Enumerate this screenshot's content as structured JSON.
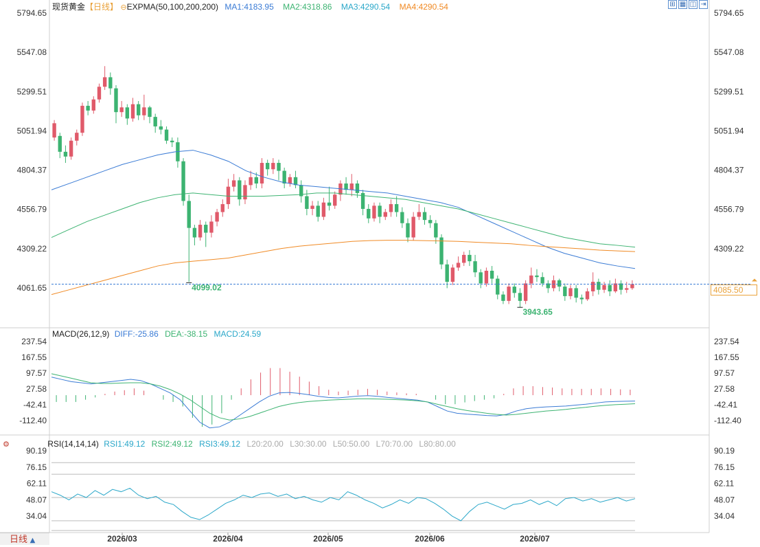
{
  "header": {
    "instrument": "现货黄金",
    "period_tag": "【日线】",
    "indicator": "EXPMA(50,100,200,200)",
    "ma1": "MA1:4183.95",
    "ma2": "MA2:4318.86",
    "ma3": "MA3:4290.54",
    "ma4": "MA4:4290.54"
  },
  "toolbar": {
    "icons": [
      "grid-icon",
      "layout-icon",
      "split-icon",
      "expand-icon"
    ]
  },
  "macd_header": {
    "name": "MACD(26,12,9)",
    "diff": "DIFF:-25.86",
    "dea": "DEA:-38.15",
    "macd": "MACD:24.59"
  },
  "rsi_header": {
    "name": "RSI(14,14,14)",
    "rsi1": "RSI1:49.12",
    "rsi2": "RSI2:49.12",
    "rsi3": "RSI3:49.12",
    "l20": "L20:20.00",
    "l30": "L30:30.00",
    "l50": "L50:50.00",
    "l70": "L70:70.00",
    "l80": "L80:80.00"
  },
  "period_button": "日线",
  "last_price": "4085.50",
  "colors": {
    "up": "#e05a6a",
    "down": "#3cb371",
    "ma1": "#3a7bd5",
    "ma2": "#3cb371",
    "ma3": "#f08a24",
    "ma4": "#f08a24",
    "macd_diff": "#3a7bd5",
    "macd_dea": "#3cb371",
    "rsi": "#2aa7c9",
    "last_line": "#3a7bd5"
  },
  "chart_data": [
    {
      "type": "candlestick",
      "title": "现货黄金",
      "y_ticks": [
        "5794.65",
        "5547.08",
        "5299.51",
        "5051.94",
        "4804.37",
        "4556.79",
        "4309.22",
        "4061.65"
      ],
      "ylim": [
        4061.65,
        5794.65
      ],
      "x_labels": [
        "2026/03",
        "2026/04",
        "2026/05",
        "2026/06",
        "2026/07"
      ],
      "annotations": {
        "low_mar": "4099.02",
        "low_jun": "3943.65"
      },
      "last_price": 4085.5,
      "series": [
        {
          "name": "MA1",
          "values": [
            4680,
            4720,
            4760,
            4800,
            4840,
            4870,
            4900,
            4920,
            4930,
            4900,
            4860,
            4800,
            4760,
            4730,
            4710,
            4700,
            4690,
            4680,
            4670,
            4660,
            4640,
            4620,
            4600,
            4570,
            4520,
            4470,
            4420,
            4370,
            4320,
            4280,
            4250,
            4220,
            4200,
            4183.95
          ]
        },
        {
          "name": "MA2",
          "values": [
            4380,
            4430,
            4480,
            4520,
            4560,
            4600,
            4630,
            4650,
            4660,
            4650,
            4640,
            4640,
            4640,
            4645,
            4650,
            4660,
            4660,
            4650,
            4640,
            4630,
            4620,
            4600,
            4580,
            4560,
            4530,
            4500,
            4470,
            4440,
            4410,
            4380,
            4360,
            4340,
            4330,
            4318.86
          ]
        },
        {
          "name": "MA3",
          "values": [
            4020,
            4050,
            4080,
            4110,
            4140,
            4170,
            4200,
            4220,
            4230,
            4240,
            4250,
            4270,
            4290,
            4310,
            4325,
            4335,
            4345,
            4355,
            4360,
            4362,
            4362,
            4360,
            4358,
            4355,
            4350,
            4345,
            4340,
            4330,
            4322,
            4315,
            4308,
            4300,
            4295,
            4290.54
          ]
        }
      ],
      "candles": [
        [
          5010,
          5100,
          4990,
          5120
        ],
        [
          5020,
          4920,
          4880,
          5040
        ],
        [
          4920,
          4890,
          4850,
          4960
        ],
        [
          4890,
          4990,
          4870,
          5010
        ],
        [
          4990,
          5040,
          4960,
          5060
        ],
        [
          5040,
          5210,
          5020,
          5230
        ],
        [
          5210,
          5180,
          5150,
          5240
        ],
        [
          5180,
          5250,
          5160,
          5270
        ],
        [
          5250,
          5330,
          5230,
          5350
        ],
        [
          5330,
          5390,
          5310,
          5460
        ],
        [
          5390,
          5320,
          5280,
          5420
        ],
        [
          5320,
          5170,
          5100,
          5340
        ],
        [
          5170,
          5200,
          5140,
          5240
        ],
        [
          5200,
          5130,
          5090,
          5220
        ],
        [
          5130,
          5220,
          5110,
          5260
        ],
        [
          5220,
          5150,
          5120,
          5240
        ],
        [
          5150,
          5200,
          5120,
          5280
        ],
        [
          5200,
          5140,
          5100,
          5210
        ],
        [
          5140,
          5080,
          5040,
          5160
        ],
        [
          5080,
          5060,
          5030,
          5120
        ],
        [
          5060,
          4990,
          4970,
          5080
        ],
        [
          4990,
          4980,
          4950,
          5010
        ],
        [
          4980,
          4860,
          4820,
          5010
        ],
        [
          4860,
          4610,
          4580,
          4880
        ],
        [
          4610,
          4440,
          4100,
          4650
        ],
        [
          4440,
          4380,
          4330,
          4460
        ],
        [
          4380,
          4460,
          4360,
          4490
        ],
        [
          4460,
          4410,
          4320,
          4480
        ],
        [
          4410,
          4480,
          4380,
          4520
        ],
        [
          4480,
          4540,
          4450,
          4560
        ],
        [
          4540,
          4590,
          4510,
          4620
        ],
        [
          4590,
          4700,
          4560,
          4750
        ],
        [
          4700,
          4740,
          4670,
          4780
        ],
        [
          4740,
          4620,
          4580,
          4760
        ],
        [
          4620,
          4710,
          4590,
          4740
        ],
        [
          4710,
          4760,
          4680,
          4800
        ],
        [
          4760,
          4720,
          4690,
          4790
        ],
        [
          4720,
          4850,
          4690,
          4880
        ],
        [
          4850,
          4810,
          4770,
          4870
        ],
        [
          4810,
          4850,
          4780,
          4880
        ],
        [
          4850,
          4800,
          4740,
          4870
        ],
        [
          4800,
          4720,
          4690,
          4820
        ],
        [
          4720,
          4760,
          4700,
          4780
        ],
        [
          4760,
          4710,
          4690,
          4800
        ],
        [
          4710,
          4640,
          4600,
          4740
        ],
        [
          4640,
          4560,
          4520,
          4680
        ],
        [
          4560,
          4580,
          4520,
          4610
        ],
        [
          4580,
          4510,
          4480,
          4610
        ],
        [
          4510,
          4600,
          4490,
          4630
        ],
        [
          4600,
          4580,
          4550,
          4700
        ],
        [
          4580,
          4650,
          4560,
          4670
        ],
        [
          4650,
          4720,
          4610,
          4740
        ],
        [
          4720,
          4680,
          4650,
          4760
        ],
        [
          4680,
          4720,
          4640,
          4780
        ],
        [
          4720,
          4660,
          4630,
          4740
        ],
        [
          4660,
          4560,
          4520,
          4680
        ],
        [
          4560,
          4500,
          4470,
          4590
        ],
        [
          4500,
          4580,
          4480,
          4600
        ],
        [
          4580,
          4510,
          4470,
          4600
        ],
        [
          4510,
          4540,
          4490,
          4560
        ],
        [
          4540,
          4590,
          4510,
          4620
        ],
        [
          4590,
          4540,
          4510,
          4640
        ],
        [
          4540,
          4470,
          4440,
          4570
        ],
        [
          4470,
          4380,
          4350,
          4500
        ],
        [
          4380,
          4510,
          4360,
          4540
        ],
        [
          4510,
          4540,
          4490,
          4590
        ],
        [
          4540,
          4490,
          4460,
          4570
        ],
        [
          4490,
          4470,
          4440,
          4520
        ],
        [
          4470,
          4380,
          4340,
          4490
        ],
        [
          4380,
          4210,
          4180,
          4400
        ],
        [
          4210,
          4100,
          4060,
          4240
        ],
        [
          4100,
          4190,
          4080,
          4210
        ],
        [
          4190,
          4220,
          4170,
          4260
        ],
        [
          4220,
          4270,
          4200,
          4290
        ],
        [
          4270,
          4230,
          4200,
          4300
        ],
        [
          4230,
          4160,
          4130,
          4270
        ],
        [
          4160,
          4090,
          4060,
          4180
        ],
        [
          4090,
          4170,
          4070,
          4190
        ],
        [
          4170,
          4120,
          4090,
          4200
        ],
        [
          4120,
          4020,
          3990,
          4140
        ],
        [
          4020,
          3980,
          3960,
          4040
        ],
        [
          3980,
          4070,
          3960,
          4090
        ],
        [
          4070,
          4030,
          4000,
          4090
        ],
        [
          4030,
          3980,
          3940,
          4060
        ],
        [
          3980,
          4090,
          3960,
          4110
        ],
        [
          4090,
          4140,
          4060,
          4190
        ],
        [
          4140,
          4130,
          4100,
          4180
        ],
        [
          4130,
          4090,
          4070,
          4160
        ],
        [
          4090,
          4060,
          4030,
          4110
        ],
        [
          4060,
          4110,
          4040,
          4140
        ],
        [
          4110,
          4070,
          4040,
          4120
        ],
        [
          4070,
          4010,
          3980,
          4090
        ],
        [
          4010,
          4060,
          3990,
          4080
        ],
        [
          4060,
          4000,
          3970,
          4080
        ],
        [
          4000,
          3990,
          3960,
          4020
        ],
        [
          3990,
          4040,
          3980,
          4060
        ],
        [
          4040,
          4100,
          4010,
          4160
        ],
        [
          4100,
          4050,
          4020,
          4120
        ],
        [
          4050,
          4080,
          4030,
          4100
        ],
        [
          4080,
          4040,
          4010,
          4110
        ],
        [
          4040,
          4090,
          4030,
          4120
        ],
        [
          4090,
          4050,
          4020,
          4110
        ],
        [
          4050,
          4060,
          4030,
          4100
        ],
        [
          4060,
          4085.5,
          4050,
          4110
        ]
      ]
    },
    {
      "type": "macd",
      "title": "MACD(26,12,9)",
      "y_ticks": [
        "237.54",
        "167.55",
        "97.57",
        "27.58",
        "-42.41",
        "-112.40"
      ],
      "ylim": [
        -112.4,
        237.54
      ],
      "series": [
        {
          "name": "DIFF",
          "values": [
            80,
            70,
            60,
            55,
            50,
            55,
            60,
            65,
            70,
            65,
            50,
            30,
            10,
            -20,
            -70,
            -120,
            -145,
            -140,
            -120,
            -90,
            -60,
            -30,
            -5,
            10,
            12,
            8,
            2,
            -5,
            -10,
            -12,
            -8,
            -4,
            -2,
            -5,
            -10,
            -14,
            -18,
            -22,
            -30,
            -50,
            -70,
            -80,
            -84,
            -87,
            -90,
            -92,
            -85,
            -70,
            -60,
            -55,
            -52,
            -50,
            -48,
            -44,
            -40,
            -35,
            -30,
            -28,
            -27,
            -26
          ]
        },
        {
          "name": "DEA",
          "values": [
            95,
            85,
            75,
            65,
            55,
            52,
            52,
            54,
            55,
            55,
            50,
            40,
            25,
            5,
            -20,
            -50,
            -80,
            -100,
            -110,
            -105,
            -95,
            -80,
            -65,
            -50,
            -40,
            -33,
            -28,
            -25,
            -22,
            -20,
            -18,
            -16,
            -16,
            -17,
            -18,
            -20,
            -22,
            -25,
            -30,
            -40,
            -50,
            -60,
            -68,
            -74,
            -80,
            -85,
            -88,
            -85,
            -80,
            -75,
            -70,
            -67,
            -63,
            -58,
            -54,
            -49,
            -45,
            -42,
            -40,
            -38
          ]
        },
        {
          "name": "MACD",
          "values": [
            -30,
            -30,
            -30,
            -20,
            -10,
            6,
            16,
            22,
            30,
            20,
            0,
            -20,
            -30,
            -50,
            -100,
            -140,
            -130,
            -80,
            -20,
            30,
            70,
            100,
            120,
            120,
            104,
            82,
            60,
            40,
            24,
            16,
            20,
            24,
            28,
            24,
            16,
            12,
            8,
            6,
            0,
            -20,
            -40,
            -40,
            -32,
            -26,
            -20,
            -14,
            6,
            30,
            40,
            40,
            36,
            34,
            30,
            28,
            28,
            28,
            30,
            28,
            26,
            24.59
          ]
        }
      ]
    },
    {
      "type": "line",
      "title": "RSI(14,14,14)",
      "y_ticks": [
        "90.19",
        "76.15",
        "62.11",
        "48.07",
        "34.04"
      ],
      "ylim": [
        34.04,
        90.19
      ],
      "series": [
        {
          "name": "RSI",
          "values": [
            55,
            52,
            48,
            53,
            50,
            56,
            52,
            57,
            55,
            58,
            52,
            49,
            51,
            46,
            44,
            38,
            33,
            31,
            35,
            40,
            45,
            48,
            52,
            50,
            53,
            54,
            51,
            53,
            49,
            51,
            48,
            46,
            50,
            48,
            55,
            52,
            48,
            45,
            41,
            44,
            48,
            45,
            50,
            49,
            45,
            40,
            34,
            30,
            38,
            44,
            46,
            43,
            40,
            44,
            45,
            48,
            44,
            47,
            43,
            49,
            50,
            47,
            49,
            46,
            48,
            50,
            47,
            49
          ]
        }
      ]
    }
  ]
}
